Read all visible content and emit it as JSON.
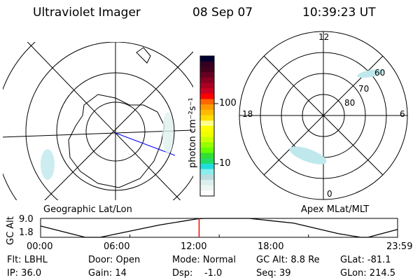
{
  "header": {
    "instrument": "Ultraviolet Imager",
    "date": "08 Sep 07",
    "time": "10:39:23 UT"
  },
  "left_map": {
    "label": "Geographic Lat/Lon"
  },
  "right_map": {
    "label": "Apex MLat/MLT",
    "mlt_labels": [
      "12",
      "18",
      "6",
      "0"
    ],
    "lat_labels": [
      "60",
      "70",
      "80"
    ]
  },
  "colorbar": {
    "label": "photon cm⁻²s⁻¹",
    "ticks": [
      "100",
      "10"
    ],
    "colors": [
      "#000033",
      "#330022",
      "#44001c",
      "#660022",
      "#880022",
      "#aa0022",
      "#cc0022",
      "#ff0000",
      "#ff6600",
      "#ff9900",
      "#ffbb00",
      "#ffdd00",
      "#ffff88",
      "#ffff00",
      "#eeff00",
      "#ccff00",
      "#99ff00",
      "#66ff00",
      "#33dd33",
      "#22dd66",
      "#22dddd",
      "#88eeee",
      "#bbdddd",
      "#ddeeee",
      "#eef6f2",
      "#ffffff"
    ],
    "scale": "log"
  },
  "chart_data": {
    "type": "line",
    "ylabel": "GC Alt",
    "yticks": [
      "9.0",
      "1.8"
    ],
    "ylim": [
      1.8,
      9.0
    ],
    "xticks": [
      "00:00",
      "06:00",
      "12:00",
      "18:00",
      "23:59"
    ],
    "x": [
      "00:00",
      "03:00",
      "04:00",
      "08:00",
      "10:30",
      "11:00",
      "14:00",
      "17:00",
      "20:00",
      "21:30",
      "22:00",
      "23:59"
    ],
    "values": [
      6.1,
      1.8,
      1.8,
      6.5,
      8.8,
      9.0,
      9.0,
      7.2,
      3.2,
      1.8,
      1.8,
      4.8
    ],
    "current_time_marker": "10:39",
    "marker_color": "#ff0000"
  },
  "status": {
    "flt": "Flt: LBHL",
    "ip": "IP: 36.0",
    "door": "Door: Open",
    "gain": "Gain: 14",
    "mode": "Mode: Normal",
    "dsp": "Dsp:    -1.0",
    "gcalt": "GC Alt: 8.8 Re",
    "seq": "Seq: 39",
    "glat": "GLat: -81.1",
    "glon": "GLon: 214.5"
  }
}
